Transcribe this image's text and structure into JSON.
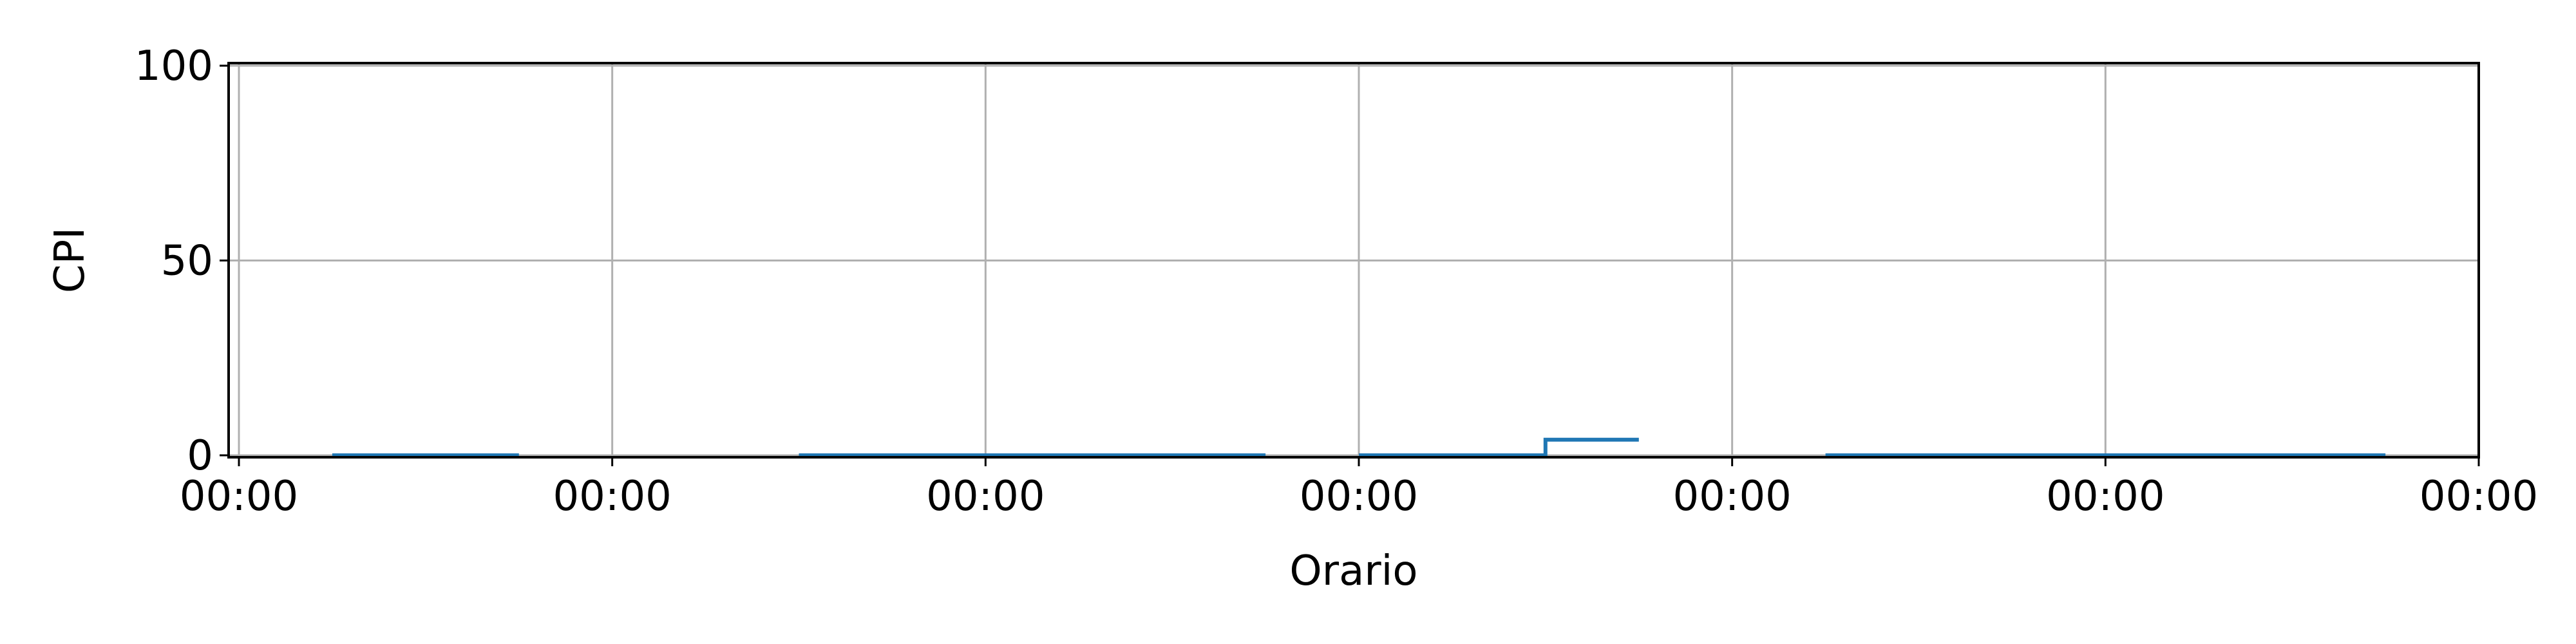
{
  "chart_data": {
    "type": "line",
    "title": "",
    "xlabel": "Orario",
    "ylabel": "CPI",
    "xlim": [
      0,
      6
    ],
    "ylim": [
      0,
      100
    ],
    "grid": true,
    "legend": "none",
    "x_ticks": [
      {
        "value": 0,
        "label": "00:00"
      },
      {
        "value": 1,
        "label": "00:00"
      },
      {
        "value": 2,
        "label": "00:00"
      },
      {
        "value": 3,
        "label": "00:00"
      },
      {
        "value": 4,
        "label": "00:00"
      },
      {
        "value": 5,
        "label": "00:00"
      },
      {
        "value": 6,
        "label": "00:00"
      }
    ],
    "y_ticks": [
      {
        "value": 0,
        "label": "0"
      },
      {
        "value": 50,
        "label": "50"
      },
      {
        "value": 100,
        "label": "100"
      }
    ],
    "series": [
      {
        "color": "#1f77b4",
        "segments": [
          [
            [
              0.25,
              0
            ],
            [
              0.75,
              0
            ]
          ],
          [
            [
              1.5,
              0
            ],
            [
              2.75,
              0
            ]
          ],
          [
            [
              3.0,
              0
            ],
            [
              3.5,
              0
            ],
            [
              3.5,
              4
            ],
            [
              3.75,
              4
            ]
          ],
          [
            [
              4.25,
              0
            ],
            [
              5.75,
              0
            ]
          ]
        ]
      }
    ]
  }
}
